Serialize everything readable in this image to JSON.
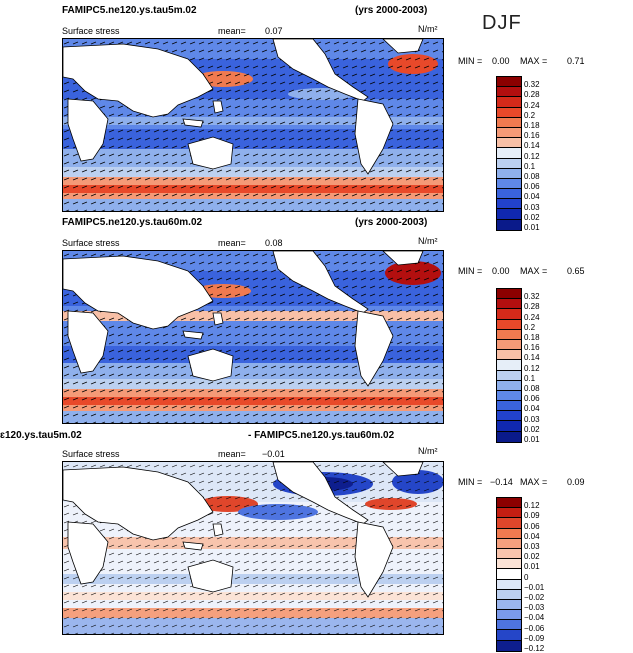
{
  "season": "DJF",
  "panels": [
    {
      "title": "FAMIPC5.ne120.ys.tau5m.02",
      "years": "(yrs 2000-2003)",
      "var": "Surface stress",
      "mean_label": "mean=",
      "mean": "0.07",
      "units": "N/m²",
      "min_label": "MIN =",
      "min": "0.00",
      "max_label": "MAX =",
      "max": "0.71",
      "levels": [
        "0.32",
        "0.28",
        "0.24",
        "0.2",
        "0.18",
        "0.16",
        "0.14",
        "0.12",
        "0.1",
        "0.08",
        "0.06",
        "0.04",
        "0.03",
        "0.02",
        "0.01"
      ]
    },
    {
      "title": "FAMIPC5.ne120.ys.tau60m.02",
      "years": "(yrs 2000-2003)",
      "var": "Surface stress",
      "mean_label": "mean=",
      "mean": "0.08",
      "units": "N/m²",
      "min_label": "MIN =",
      "min": "0.00",
      "max_label": "MAX =",
      "max": "0.65",
      "levels": [
        "0.32",
        "0.28",
        "0.24",
        "0.2",
        "0.18",
        "0.16",
        "0.14",
        "0.12",
        "0.1",
        "0.08",
        "0.06",
        "0.04",
        "0.03",
        "0.02",
        "0.01"
      ]
    },
    {
      "title_left": "ɛ120.ys.tau5m.02",
      "title_right": "- FAMIPC5.ne120.ys.tau60m.02",
      "var": "Surface stress",
      "mean_label": "mean=",
      "mean": "−0.01",
      "units": "N/m²",
      "min_label": "MIN =",
      "min": "−0.14",
      "max_label": "MAX =",
      "max": "0.09",
      "levels": [
        "0.12",
        "0.09",
        "0.06",
        "0.04",
        "0.03",
        "0.02",
        "0.01",
        "0",
        "−0.01",
        "−0.02",
        "−0.03",
        "−0.04",
        "−0.06",
        "−0.09",
        "−0.12"
      ]
    }
  ],
  "colors": {
    "abs_scale": [
      "#8b0000",
      "#b30f0f",
      "#d42a1a",
      "#e8492a",
      "#f07a50",
      "#f59a77",
      "#f8c0a7",
      "#e6eef8",
      "#bcd0f0",
      "#8fb0ec",
      "#5f88e8",
      "#3a63dd",
      "#2242cc",
      "#1028b0",
      "#0a1a8a"
    ],
    "diff_scale": [
      "#8b0000",
      "#c41e12",
      "#e0462b",
      "#f07a50",
      "#f5a07e",
      "#f8c4ad",
      "#fbe3d6",
      "#ffffff",
      "#dde7f7",
      "#bcd0f0",
      "#9bb6ee",
      "#7b9aea",
      "#4e74e0",
      "#2546c8",
      "#0e1e8e"
    ]
  }
}
